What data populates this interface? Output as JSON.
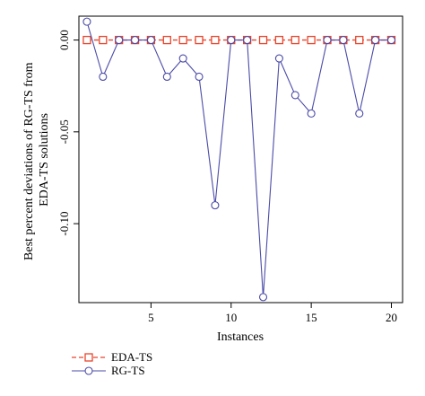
{
  "chart_data": {
    "type": "line",
    "title": "",
    "xlabel": "Instances",
    "ylabel_lines": [
      "Best percent deviations of RG-TS from",
      "EDA-TS solutions"
    ],
    "x": [
      1,
      2,
      3,
      4,
      5,
      6,
      7,
      8,
      9,
      10,
      11,
      12,
      13,
      14,
      15,
      16,
      17,
      18,
      19,
      20
    ],
    "xlim": [
      0.5,
      20.7
    ],
    "ylim": [
      -0.143,
      0.013
    ],
    "xticks": [
      5,
      10,
      15,
      20
    ],
    "xtick_labels": [
      "5",
      "10",
      "15",
      "20"
    ],
    "yticks": [
      0.0,
      -0.05,
      -0.1
    ],
    "ytick_labels": [
      "0.00",
      "-0.05",
      "-0.10"
    ],
    "grid": false,
    "legend_position": "bottom-left, below plot",
    "series": [
      {
        "name": "EDA-TS",
        "color": "#e8452c",
        "line_style": "dashed",
        "marker": "square",
        "values": [
          0,
          0,
          0,
          0,
          0,
          0,
          0,
          0,
          0,
          0,
          0,
          0,
          0,
          0,
          0,
          0,
          0,
          0,
          0,
          0
        ]
      },
      {
        "name": "RG-TS",
        "color": "#4b4ba8",
        "line_style": "solid",
        "marker": "circle",
        "values": [
          0.01,
          -0.02,
          0,
          0,
          0,
          -0.02,
          -0.01,
          -0.02,
          -0.09,
          0,
          0,
          -0.14,
          -0.01,
          -0.03,
          -0.04,
          0,
          0,
          -0.04,
          0,
          0
        ]
      }
    ]
  }
}
